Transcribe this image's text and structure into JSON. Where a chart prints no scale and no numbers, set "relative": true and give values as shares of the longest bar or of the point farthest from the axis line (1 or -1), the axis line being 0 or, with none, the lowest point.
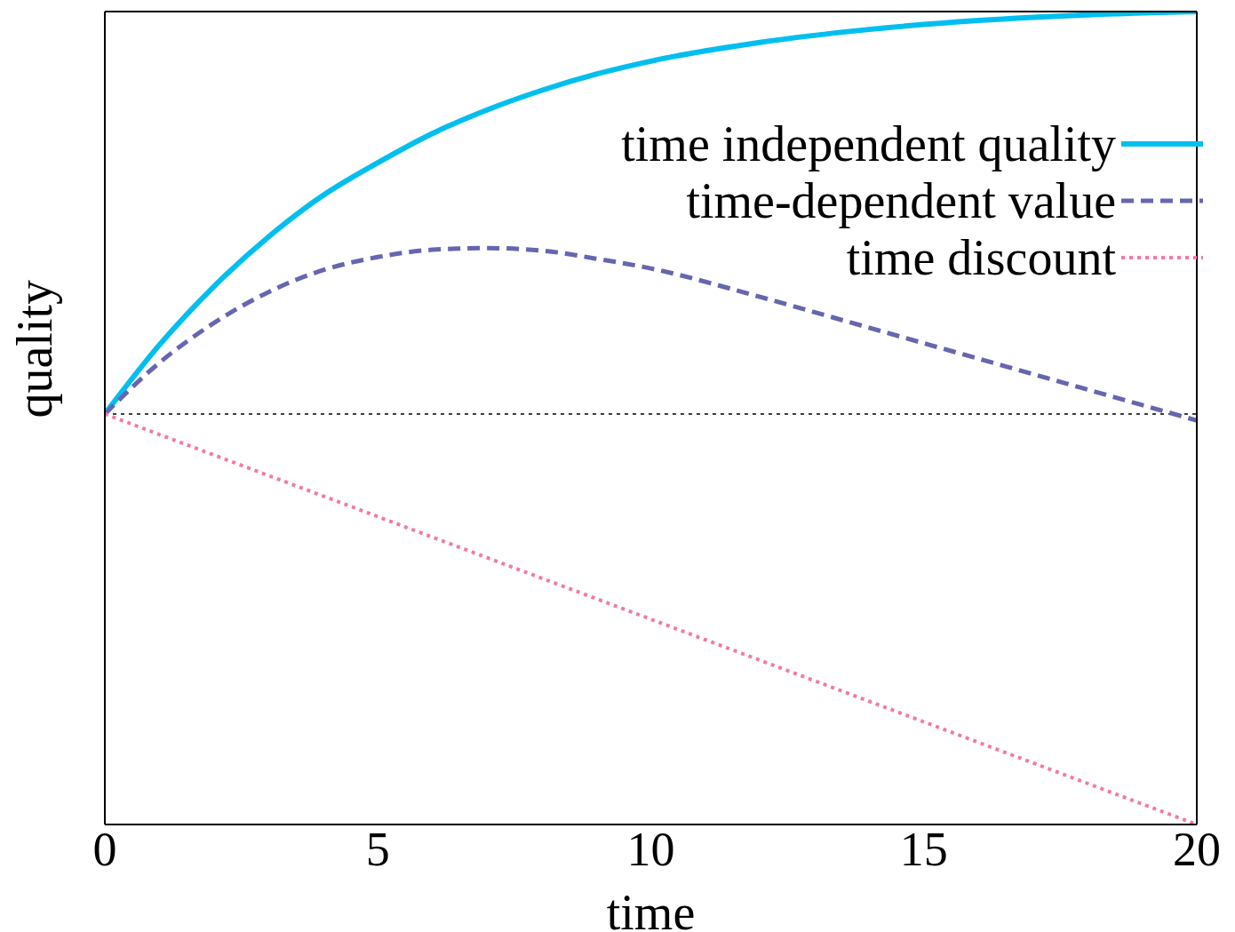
{
  "chart_data": {
    "type": "line",
    "relative": true,
    "xlabel": "time",
    "ylabel": "quality",
    "xlim": [
      0,
      20
    ],
    "xticks": [
      0,
      5,
      10,
      15,
      20
    ],
    "legend": "top right",
    "marker": "none",
    "series": [
      {
        "name": "time independent quality",
        "color": "#00bfef",
        "line_style": "solid",
        "x": [
          0,
          1,
          2,
          3,
          4,
          5,
          6,
          7,
          8,
          9,
          10,
          12,
          14,
          16,
          18,
          20
        ],
        "values": [
          0.505,
          0.59,
          0.662,
          0.723,
          0.774,
          0.814,
          0.85,
          0.879,
          0.903,
          0.923,
          0.939,
          0.962,
          0.978,
          0.989,
          0.996,
          1
        ]
      },
      {
        "name": "time-dependent value",
        "color": "#6666b0",
        "line_style": "dashed",
        "x": [
          0,
          1,
          2,
          3,
          4,
          5,
          6,
          7,
          8,
          9,
          10,
          12,
          14,
          16,
          18,
          20
        ],
        "values": [
          0.505,
          0.568,
          0.617,
          0.655,
          0.682,
          0.698,
          0.707,
          0.709,
          0.706,
          0.696,
          0.684,
          0.649,
          0.611,
          0.573,
          0.535,
          0.497
        ]
      },
      {
        "name": "time discount",
        "color": "#f07aaa",
        "line_style": "dotted",
        "x": [
          0,
          20
        ],
        "values": [
          0.505,
          0
        ]
      }
    ],
    "ref_lines": [
      {
        "axis": "y",
        "value": 0.505,
        "color": "#000000",
        "line_style": "dotted"
      }
    ]
  }
}
